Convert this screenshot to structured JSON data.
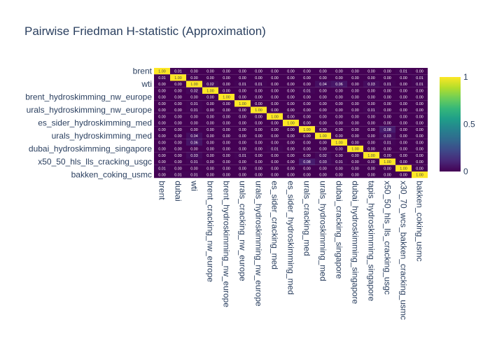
{
  "chart_data": {
    "type": "heatmap",
    "title": "Pairwise Friedman H-statistic (Approximation)",
    "xlabel": "",
    "ylabel": "",
    "categories": [
      "brent",
      "dubai",
      "wti",
      "brent_cracking_nw_europe",
      "brent_hydroskimming_nw_europe",
      "urals_cracking_nw_europe",
      "urals_hydroskimming_nw_europe",
      "es_sider_cracking_med",
      "es_sider_hydroskimming_med",
      "urals_cracking_med",
      "urals_hydroskimming_med",
      "dubai_cracking_singapore",
      "dubai_hydroskimming_singapore",
      "tapis_hydroskimming_singapore",
      "x50_50_hls_lls_cracking_usgc",
      "x30_70_wcs_bakken_cracking_usmc",
      "bakken_coking_usmc"
    ],
    "y_tick_labels_shown": [
      "brent",
      "wti",
      "brent_hydroskimming_nw_europe",
      "urals_hydroskimming_nw_europe",
      "es_sider_hydroskimming_med",
      "urals_hydroskimming_med",
      "dubai_hydroskimming_singapore",
      "x50_50_hls_lls_cracking_usgc",
      "bakken_coking_usmc"
    ],
    "values": [
      [
        1.0,
        0.01,
        0.0,
        0.0,
        0.0,
        0.0,
        0.0,
        0.0,
        0.0,
        0.0,
        0.0,
        0.0,
        0.0,
        0.0,
        0.0,
        0.01,
        0.0
      ],
      [
        0.01,
        1.0,
        0.0,
        0.0,
        0.0,
        0.0,
        0.0,
        0.0,
        0.0,
        0.0,
        0.0,
        0.0,
        0.0,
        0.0,
        0.0,
        0.0,
        0.01
      ],
      [
        0.0,
        0.0,
        1.0,
        0.02,
        0.0,
        0.01,
        0.01,
        0.0,
        0.0,
        0.0,
        0.04,
        0.06,
        0.0,
        0.03,
        0.01,
        0.0,
        0.01
      ],
      [
        0.0,
        0.0,
        0.02,
        1.0,
        0.0,
        0.0,
        0.0,
        0.0,
        0.0,
        0.01,
        0.0,
        0.0,
        0.0,
        0.0,
        0.0,
        0.0,
        0.0
      ],
      [
        0.0,
        0.0,
        0.0,
        0.0,
        1.0,
        0.0,
        0.0,
        0.0,
        0.0,
        0.0,
        0.0,
        0.0,
        0.0,
        0.0,
        0.0,
        0.0,
        0.0
      ],
      [
        0.0,
        0.0,
        0.01,
        0.0,
        0.0,
        1.0,
        0.0,
        0.0,
        0.0,
        0.0,
        0.0,
        0.0,
        0.0,
        0.0,
        0.0,
        0.0,
        0.0
      ],
      [
        0.0,
        0.0,
        0.01,
        0.0,
        0.0,
        0.0,
        1.0,
        0.0,
        0.0,
        0.0,
        0.0,
        0.0,
        0.0,
        0.01,
        0.0,
        0.0,
        0.0
      ],
      [
        0.0,
        0.0,
        0.0,
        0.0,
        0.0,
        0.0,
        0.0,
        1.0,
        0.0,
        0.0,
        0.0,
        0.0,
        0.0,
        0.0,
        0.0,
        0.0,
        0.0
      ],
      [
        0.0,
        0.0,
        0.0,
        0.0,
        0.0,
        0.0,
        0.0,
        0.0,
        1.0,
        0.0,
        0.0,
        0.0,
        0.0,
        0.0,
        0.0,
        0.0,
        0.0
      ],
      [
        0.0,
        0.0,
        0.0,
        0.0,
        0.0,
        0.0,
        0.0,
        0.0,
        0.0,
        1.0,
        0.0,
        0.0,
        0.0,
        0.0,
        0.08,
        0.0,
        0.0
      ],
      [
        0.0,
        0.0,
        0.04,
        0.0,
        0.0,
        0.0,
        0.0,
        0.0,
        0.0,
        0.0,
        1.0,
        0.0,
        0.0,
        0.0,
        0.03,
        0.0,
        0.0
      ],
      [
        0.0,
        0.0,
        0.06,
        0.0,
        0.0,
        0.0,
        0.0,
        0.0,
        0.0,
        0.0,
        0.0,
        1.0,
        0.0,
        0.0,
        0.01,
        0.0,
        0.0
      ],
      [
        0.0,
        0.0,
        0.0,
        0.0,
        0.0,
        0.0,
        0.0,
        0.01,
        0.0,
        0.0,
        0.0,
        0.0,
        1.0,
        0.0,
        0.0,
        0.0,
        0.0
      ],
      [
        0.0,
        0.0,
        0.03,
        0.0,
        0.0,
        0.01,
        0.0,
        0.0,
        0.0,
        0.0,
        0.02,
        0.0,
        0.0,
        1.0,
        0.0,
        0.0,
        0.0
      ],
      [
        0.0,
        0.0,
        0.01,
        0.0,
        0.0,
        0.0,
        0.0,
        0.0,
        0.0,
        0.08,
        0.03,
        0.01,
        0.0,
        0.0,
        1.0,
        0.0,
        0.0
      ],
      [
        0.01,
        0.0,
        0.0,
        0.0,
        0.0,
        0.0,
        0.0,
        0.0,
        0.0,
        0.0,
        0.0,
        0.0,
        0.0,
        0.0,
        0.0,
        1.0,
        0.0
      ],
      [
        0.0,
        0.01,
        0.01,
        0.0,
        0.0,
        0.0,
        0.0,
        0.0,
        0.0,
        0.0,
        0.0,
        0.0,
        0.0,
        0.0,
        0.0,
        0.0,
        1.0
      ]
    ],
    "zlim": [
      0,
      1
    ],
    "colorscale": "Viridis",
    "colorscale_stops": [
      "#440154",
      "#482878",
      "#3e4989",
      "#31688e",
      "#26828e",
      "#1f9e89",
      "#35b779",
      "#6ece58",
      "#b5de2b",
      "#fde725"
    ],
    "colorbar_ticks": [
      "0",
      "0.5",
      "1"
    ],
    "cell_text_format": "2 decimals",
    "title_color": "#2a3f5f"
  }
}
